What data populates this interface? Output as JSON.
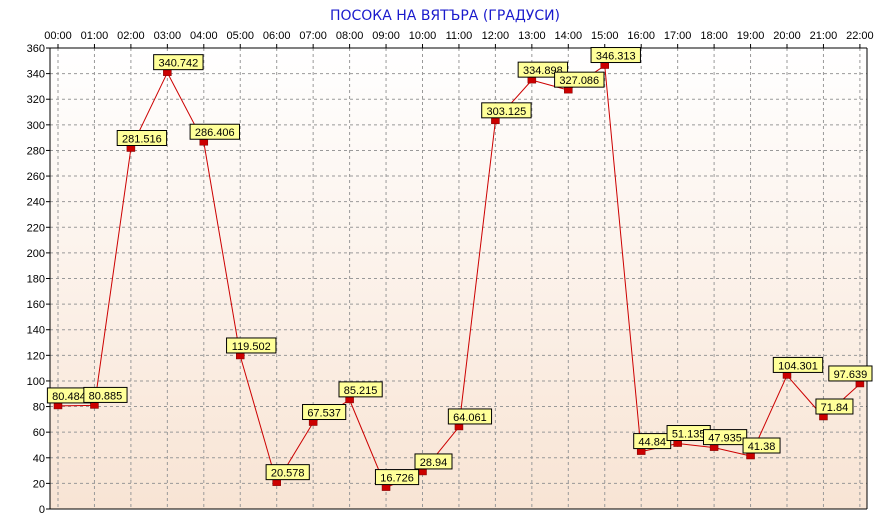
{
  "chart_data": {
    "type": "line",
    "title": "ПОСОКА НА ВЯТЪРА    (ГРАДУСИ)",
    "xlabel": "",
    "ylabel": "",
    "categories": [
      "00:00",
      "01:00",
      "02:00",
      "03:00",
      "04:00",
      "05:00",
      "06:00",
      "07:00",
      "08:00",
      "09:00",
      "10:00",
      "11:00",
      "12:00",
      "13:00",
      "14:00",
      "15:00",
      "16:00",
      "17:00",
      "18:00",
      "19:00",
      "20:00",
      "21:00",
      "22:00"
    ],
    "x_tick_labels": [
      "00:00",
      "01:00",
      "02:00",
      "03:00",
      "04:00",
      "05:00",
      "06:00",
      "07:00",
      "08:00",
      "09:00",
      "10:00",
      "11:00",
      "12:00",
      "13:00",
      "14:00",
      "15:00",
      "16:00",
      "17:00",
      "18:00",
      "19:00",
      "20:00",
      "21:00",
      "22:00"
    ],
    "series": [
      {
        "values": [
          80.484,
          80.885,
          281.516,
          340.742,
          286.406,
          119.502,
          20.578,
          67.537,
          85.215,
          16.726,
          28.94,
          64.061,
          303.125,
          334.898,
          327.086,
          346.313,
          44.84,
          51.135,
          47.935,
          41.38,
          104.301,
          71.84,
          97.639
        ],
        "data_labels": [
          "80.484",
          "80.885",
          "281.516",
          "340.742",
          "286.406",
          "119.502",
          "20.578",
          "67.537",
          "85.215",
          "16.726",
          "28.94",
          "64.061",
          "303.125",
          "334.898",
          "327.086",
          "346.313",
          "44.84",
          "51.135",
          "47.935",
          "41.38",
          "104.301",
          "71.84",
          "97.639"
        ]
      }
    ],
    "ylim": [
      0,
      360
    ],
    "y_ticks": [
      0,
      20,
      40,
      60,
      80,
      100,
      120,
      140,
      160,
      180,
      200,
      220,
      240,
      260,
      280,
      300,
      320,
      340,
      360
    ],
    "y_tick_labels": [
      "0",
      "20",
      "40",
      "60",
      "80",
      "100",
      "120",
      "140",
      "160",
      "180",
      "200",
      "220",
      "240",
      "260",
      "280",
      "300",
      "320",
      "340",
      "360"
    ],
    "grid": true,
    "legend": "none",
    "colors": {
      "line": "#cc0000",
      "marker": "#cc0000",
      "label_fill": "#ffff99",
      "title": "#1a1acc",
      "grid": "#999999",
      "bg_top": "#ffffff",
      "bg_bottom": "#f8e4d4"
    }
  }
}
